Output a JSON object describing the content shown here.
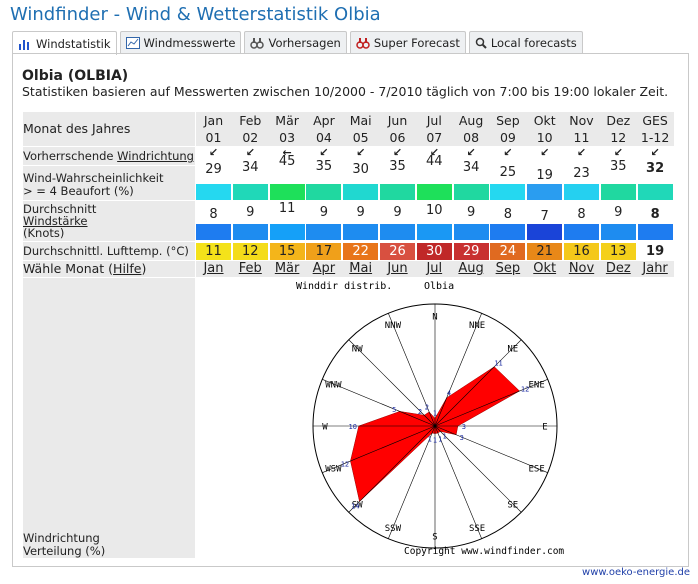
{
  "page": {
    "title": "Windfinder - Wind & Wetterstatistik Olbia",
    "tabs": [
      {
        "label": "Windstatistik",
        "icon": "bar-chart-icon",
        "active": true
      },
      {
        "label": "Windmesswerte",
        "icon": "line-chart-icon",
        "active": false
      },
      {
        "label": "Vorhersagen",
        "icon": "binoculars-icon",
        "active": false
      },
      {
        "label": "Super Forecast",
        "icon": "binoculars-icon",
        "active": false
      },
      {
        "label": "Local forecasts",
        "icon": "magnifier-icon",
        "active": false
      }
    ],
    "location": "Olbia (OLBIA)",
    "subtitle": "Statistiken basieren auf Messwerten zwischen 10/2000 - 7/2010 täglich von 7:00 bis 19:00 lokaler Zeit.",
    "footer_link": "www.oeko-energie.de"
  },
  "table": {
    "row_labels": {
      "month": "Monat des Jahres",
      "direction_prefix": "Vorherrschende ",
      "direction_link": "Windrichtung",
      "probability_line1": "Wind-Wahrscheinlichkeit",
      "probability_line2": "> = 4 Beaufort (%)",
      "speed_line1": "Durchschnitt",
      "speed_line2": "Windstärke",
      "speed_line3": "(Knots)",
      "temp": "Durchschnittl. Lufttemp. (°C)",
      "select_prefix": "Wähle Monat (",
      "select_link": "Hilfe",
      "select_suffix": ")"
    },
    "months": [
      "Jan",
      "Feb",
      "Mär",
      "Apr",
      "Mai",
      "Jun",
      "Jul",
      "Aug",
      "Sep",
      "Okt",
      "Nov",
      "Dez",
      "GES"
    ],
    "month_numbers": [
      "01",
      "02",
      "03",
      "04",
      "05",
      "06",
      "07",
      "08",
      "09",
      "10",
      "11",
      "12",
      "1-12"
    ],
    "direction_arrows": [
      "↙",
      "↙",
      "←",
      "↙",
      "↙",
      "↙",
      "↙",
      "↙",
      "↙",
      "↙",
      "↙",
      "↙",
      "↙"
    ],
    "probability": [
      29,
      34,
      45,
      35,
      30,
      35,
      44,
      34,
      25,
      19,
      23,
      35,
      32
    ],
    "probability_colors": [
      "#25d8f0",
      "#20d8b8",
      "#1ee05a",
      "#20d8a0",
      "#20d8d0",
      "#20d8a0",
      "#1ee05a",
      "#20d8a0",
      "#25d8f0",
      "#2a9df0",
      "#25d0f0",
      "#20d8a0",
      "#20d8b8"
    ],
    "speed": [
      8,
      9,
      11,
      9,
      9,
      9,
      10,
      9,
      8,
      7,
      8,
      9,
      8
    ],
    "speed_colors": [
      "#1e7cf0",
      "#1e8cf0",
      "#15a0f8",
      "#1e8cf0",
      "#1e8cf0",
      "#1e8cf0",
      "#1a98f4",
      "#1e8cf0",
      "#1e7cf0",
      "#1a44d8",
      "#1e7cf0",
      "#1e8cf0",
      "#1e7cf0"
    ],
    "temp": [
      11,
      12,
      15,
      17,
      22,
      26,
      30,
      29,
      24,
      21,
      16,
      13,
      19
    ],
    "temp_colors": [
      "#f4e21a",
      "#f4dc1a",
      "#f4b51a",
      "#f0a01a",
      "#e8751a",
      "#d85040",
      "#c02828",
      "#c83030",
      "#e06a20",
      "#e88818",
      "#f4c81a",
      "#f4d01a",
      "#ffffff"
    ],
    "select_links": [
      "Jan",
      "Feb",
      "Mär",
      "Apr",
      "Mai",
      "Jun",
      "Jul",
      "Aug",
      "Sep",
      "Okt",
      "Nov",
      "Dez",
      "Jahr"
    ]
  },
  "rose": {
    "label_line1": "Windrichtung",
    "label_line2": "Verteilung (%)",
    "caption": "Winddir distrib.",
    "station": "Olbia",
    "copyright": "Copyright www.windfinder.com",
    "directions": [
      "N",
      "NNE",
      "NE",
      "ENE",
      "E",
      "ESE",
      "SE",
      "SSE",
      "S",
      "SSW",
      "SW",
      "WSW",
      "W",
      "WNW",
      "NW",
      "NNW"
    ],
    "values": [
      1,
      4,
      11,
      12,
      3,
      3,
      1,
      1,
      1,
      1,
      14,
      12,
      10,
      5,
      2,
      2
    ],
    "fill": "#ff0000"
  }
}
